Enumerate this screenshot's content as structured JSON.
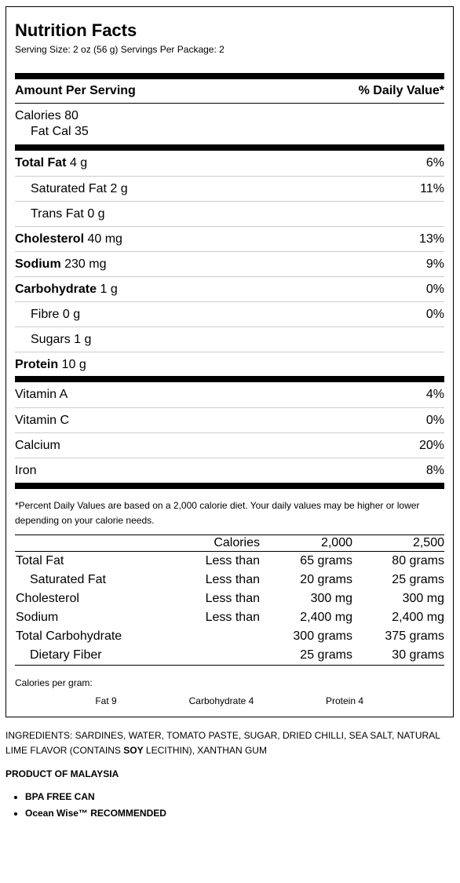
{
  "title": "Nutrition Facts",
  "serving": "Serving Size: 2 oz (56 g) Servings Per Package: 2",
  "amount_header": "Amount Per Serving",
  "dv_header": "% Daily Value*",
  "calories": "Calories 80",
  "fat_cal": "Fat Cal 35",
  "nutrients": [
    {
      "name": "Total Fat",
      "amount": "4 g",
      "dv": "6%"
    },
    {
      "name": "Saturated Fat",
      "amount": "2 g",
      "dv": "11%",
      "indent": true
    },
    {
      "name": "Trans Fat",
      "amount": "0 g",
      "indent": true
    },
    {
      "name": "Cholesterol",
      "amount": "40 mg",
      "dv": "13%"
    },
    {
      "name": "Sodium",
      "amount": "230 mg",
      "dv": "9%"
    },
    {
      "name": "Carbohydrate",
      "amount": "1 g",
      "dv": "0%"
    },
    {
      "name": "Fibre",
      "amount": "0 g",
      "dv": "0%",
      "indent": true
    },
    {
      "name": "Sugars",
      "amount": "1 g",
      "indent": true
    },
    {
      "name": "Protein",
      "amount": "10 g"
    }
  ],
  "vitamins": [
    {
      "name": "Vitamin A",
      "dv": "4%"
    },
    {
      "name": "Vitamin C",
      "dv": "0%"
    },
    {
      "name": "Calcium",
      "dv": "20%"
    },
    {
      "name": "Iron",
      "dv": "8%"
    }
  ],
  "footnote": "*Percent Daily Values are based on a 2,000 calorie diet. Your daily values may be higher or lower depending on your calorie needs.",
  "table": {
    "header": {
      "label": "Calories",
      "cols": [
        "2,000",
        "2,500"
      ]
    },
    "rows": [
      {
        "name": "Total Fat",
        "cmp": "Less than",
        "cols": [
          "65 grams",
          "80 grams"
        ]
      },
      {
        "name": "Saturated Fat",
        "cmp": "Less than",
        "cols": [
          "20 grams",
          "25 grams"
        ],
        "indent": true
      },
      {
        "name": "Cholesterol",
        "cmp": "Less than",
        "cols": [
          "300 mg",
          "300 mg"
        ]
      },
      {
        "name": "Sodium",
        "cmp": "Less than",
        "cols": [
          "2,400 mg",
          "2,400 mg"
        ]
      },
      {
        "name": "Total Carbohydrate",
        "cols": [
          "300 grams",
          "375 grams"
        ]
      },
      {
        "name": "Dietary Fiber",
        "cols": [
          "25 grams",
          "30 grams"
        ],
        "indent": true
      }
    ]
  },
  "calories_per_gram": {
    "label": "Calories per gram:",
    "items": [
      "Fat 9",
      "Carbohydrate 4",
      "Protein 4"
    ]
  },
  "ingredients": [
    "INGREDIENTS: SARDINES, WATER, TOMATO PASTE, SUGAR, DRIED CHILLI, SEA SALT, NATURAL LIME FLAVOR (CONTAINS ",
    "SOY",
    " LECITHIN), XANTHAN GUM"
  ],
  "origin": "PRODUCT OF MALAYSIA",
  "bullets": [
    "BPA FREE CAN",
    "Ocean Wise™ RECOMMENDED"
  ]
}
